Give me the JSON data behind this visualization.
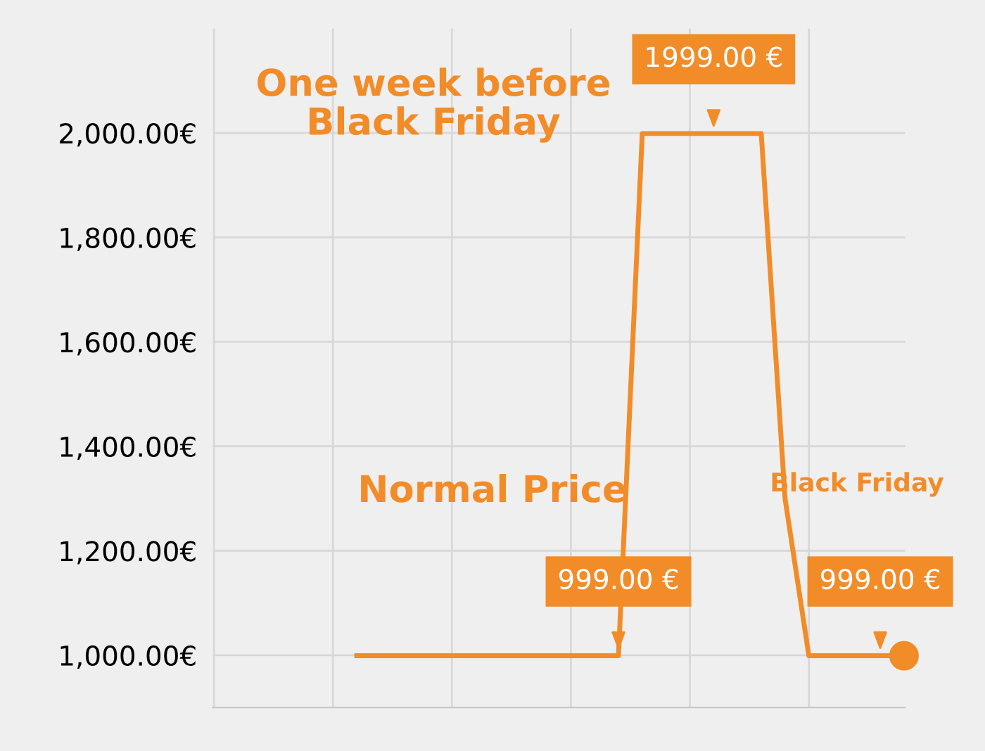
{
  "chart_data": {
    "type": "line",
    "categories": [
      null,
      null,
      null,
      null,
      null,
      null,
      null,
      null,
      null,
      null,
      null,
      null,
      null,
      null,
      null,
      null,
      null,
      null,
      null,
      null,
      null,
      null,
      null,
      null,
      null,
      null,
      null,
      null,
      null,
      null
    ],
    "series": [
      {
        "color": "#f28c28",
        "values": [
          null,
          null,
          null,
          null,
          null,
          null,
          999,
          999,
          999,
          999,
          999,
          999,
          999,
          999,
          999,
          999,
          999,
          999,
          1999,
          1999,
          1999,
          1999,
          1999,
          1999,
          1300,
          999,
          999,
          999,
          999,
          999
        ],
        "value_labels": [
          null,
          null,
          null,
          null,
          null,
          null,
          null,
          null,
          null,
          null,
          null,
          null,
          null,
          null,
          null,
          null,
          null,
          "999.00 €",
          null,
          null,
          null,
          "1999.00 €",
          null,
          null,
          null,
          null,
          null,
          null,
          "999.00 €",
          null
        ]
      },
      {
        "type": "scatter",
        "color": "#f28c28",
        "marker": "circle",
        "values": [
          null,
          null,
          null,
          null,
          null,
          null,
          null,
          null,
          null,
          null,
          null,
          null,
          null,
          null,
          null,
          null,
          null,
          null,
          null,
          null,
          null,
          null,
          null,
          null,
          null,
          null,
          null,
          null,
          null,
          999
        ]
      }
    ],
    "ylim": [
      900,
      2200
    ],
    "yticks": [
      {
        "value": 1000,
        "label": "1,000.00€"
      },
      {
        "value": 1200,
        "label": "1,200.00€"
      },
      {
        "value": 1400,
        "label": "1,400.00€"
      },
      {
        "value": 1600,
        "label": "1,600.00€"
      },
      {
        "value": 1800,
        "label": "1,800.00€"
      },
      {
        "value": 2000,
        "label": "2,000.00€"
      }
    ],
    "grid": true,
    "legend": false,
    "tick_labels": "y",
    "annotations": [
      "One week before\nBlack Friday",
      "Normal Price",
      "Black Friday"
    ]
  }
}
